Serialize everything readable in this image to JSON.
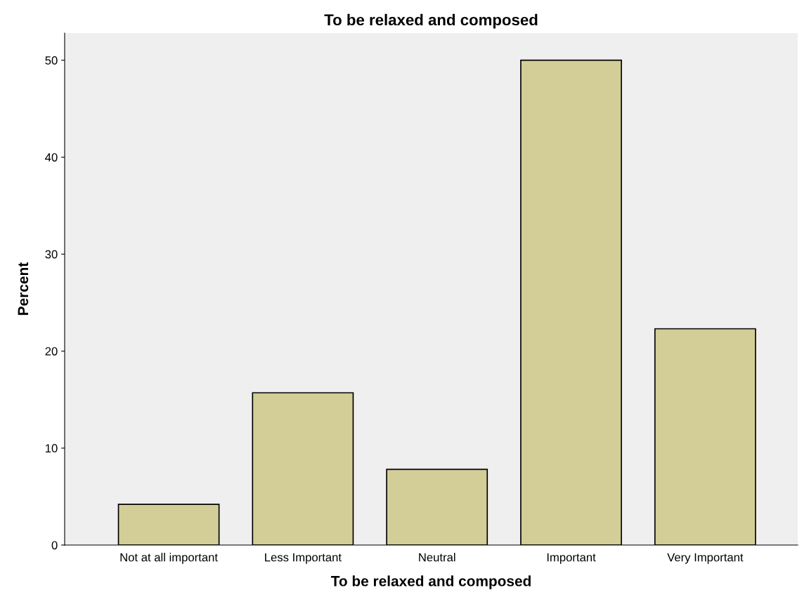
{
  "chart_data": {
    "type": "bar",
    "title": "To be relaxed and composed",
    "xlabel": "To be relaxed and composed",
    "ylabel": "Percent",
    "categories": [
      "Not at all important",
      "Less Important",
      "Neutral",
      "Important",
      "Very Important"
    ],
    "values": [
      4.2,
      15.7,
      7.8,
      50.0,
      22.3
    ],
    "color": "#d3ce97",
    "ylim": [
      0,
      52.8
    ],
    "yticks": [
      0,
      10,
      20,
      30,
      40,
      50
    ],
    "grid": false,
    "legend": false
  }
}
